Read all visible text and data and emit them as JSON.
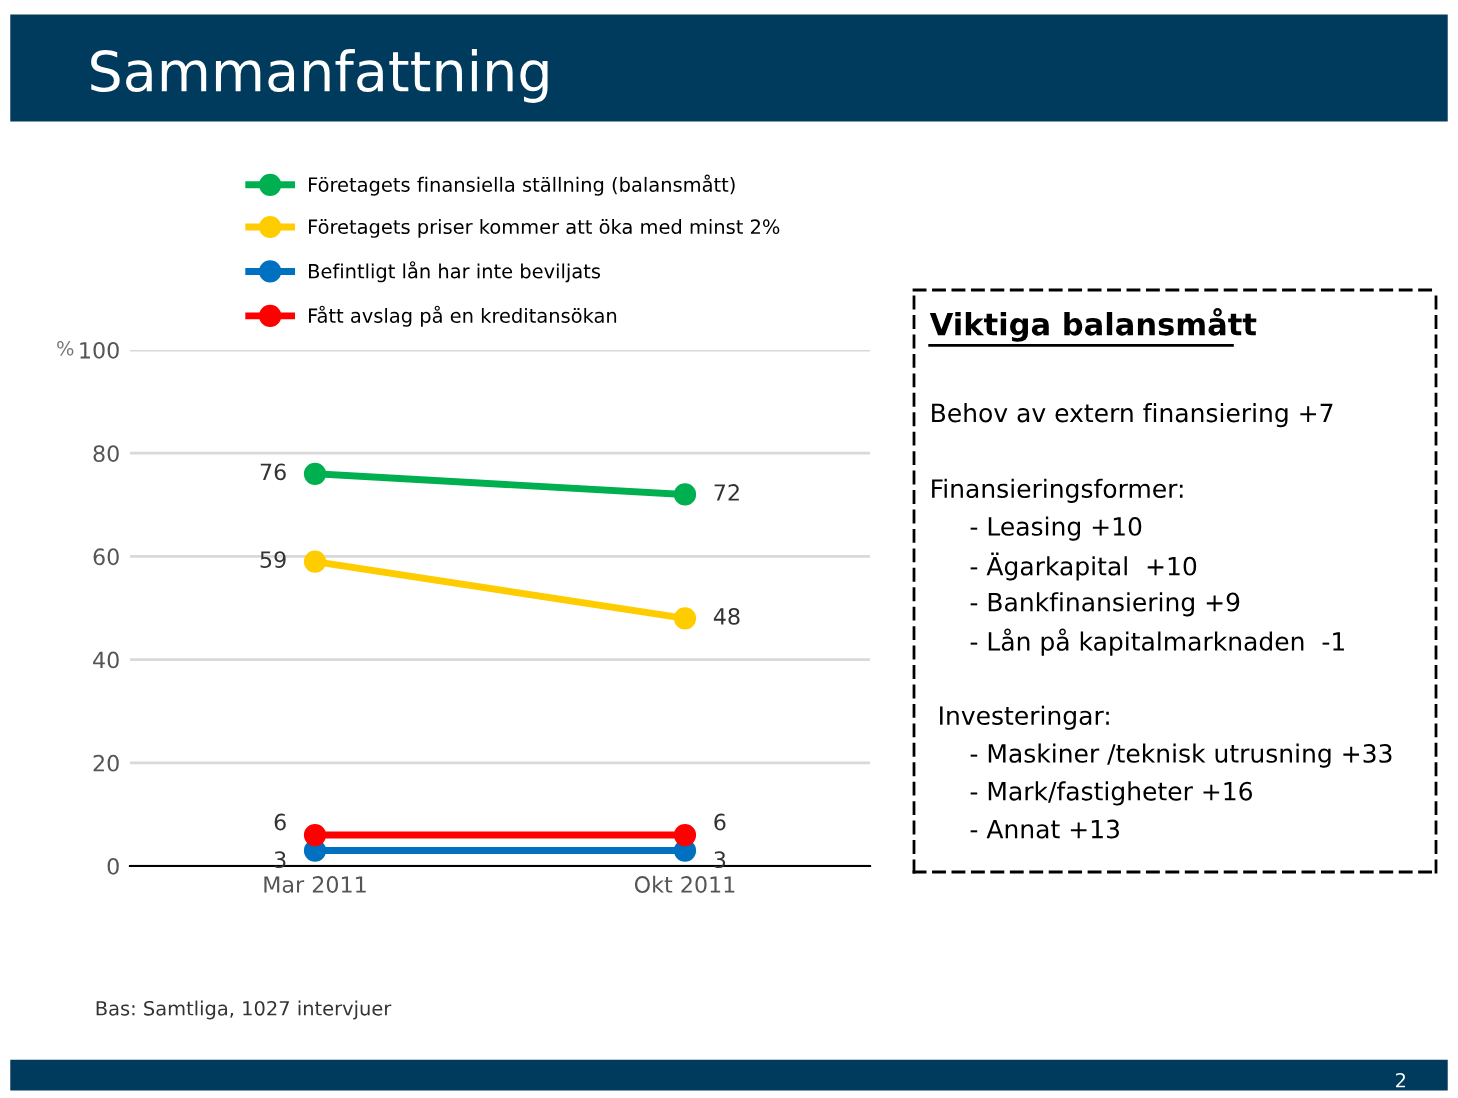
{
  "chart_data": [
    {
      "type": "line",
      "title": "Sammanfattning",
      "ylabel": "%",
      "categories": [
        "Mar 2011",
        "Okt 2011"
      ],
      "series": [
        {
          "name": "Företagets finansiella ställning (balansmått)",
          "color": "#00b050",
          "values": [
            76,
            72
          ]
        },
        {
          "name": "Företagets priser kommer att öka med minst 2%",
          "color": "#ffcc00",
          "values": [
            59,
            48
          ]
        },
        {
          "name": "Befintligt lån har inte beviljats",
          "color": "#0070c0",
          "values": [
            3,
            3
          ]
        },
        {
          "name": "Fått avslag på en kreditansökan",
          "color": "#ff0000",
          "values": [
            6,
            6
          ]
        }
      ],
      "ylim": [
        0,
        100
      ],
      "yticks": [
        0,
        20,
        40,
        60,
        80,
        100
      ],
      "grid": "y",
      "legend": "top",
      "marker": "circle",
      "line_style": "solid",
      "data_labels": true,
      "annotations": [
        "Bas: Samtliga, 1027 intervjuer",
        "2"
      ]
    },
    {
      "type": "other",
      "title": "Viktiga balansmått",
      "annotations": [
        "Behov av extern finansiering +7",
        "Finansieringsformer:",
        "     - Leasing +10",
        "     - Ägarkapital  +10",
        "     - Bankfinansiering +9",
        "     - Lån på kapitalmarknaden  -1",
        " Investeringar:",
        "     - Maskiner /teknisk utrusning +33",
        "     - Mark/fastigheter +16",
        "     - Annat +13"
      ]
    }
  ]
}
